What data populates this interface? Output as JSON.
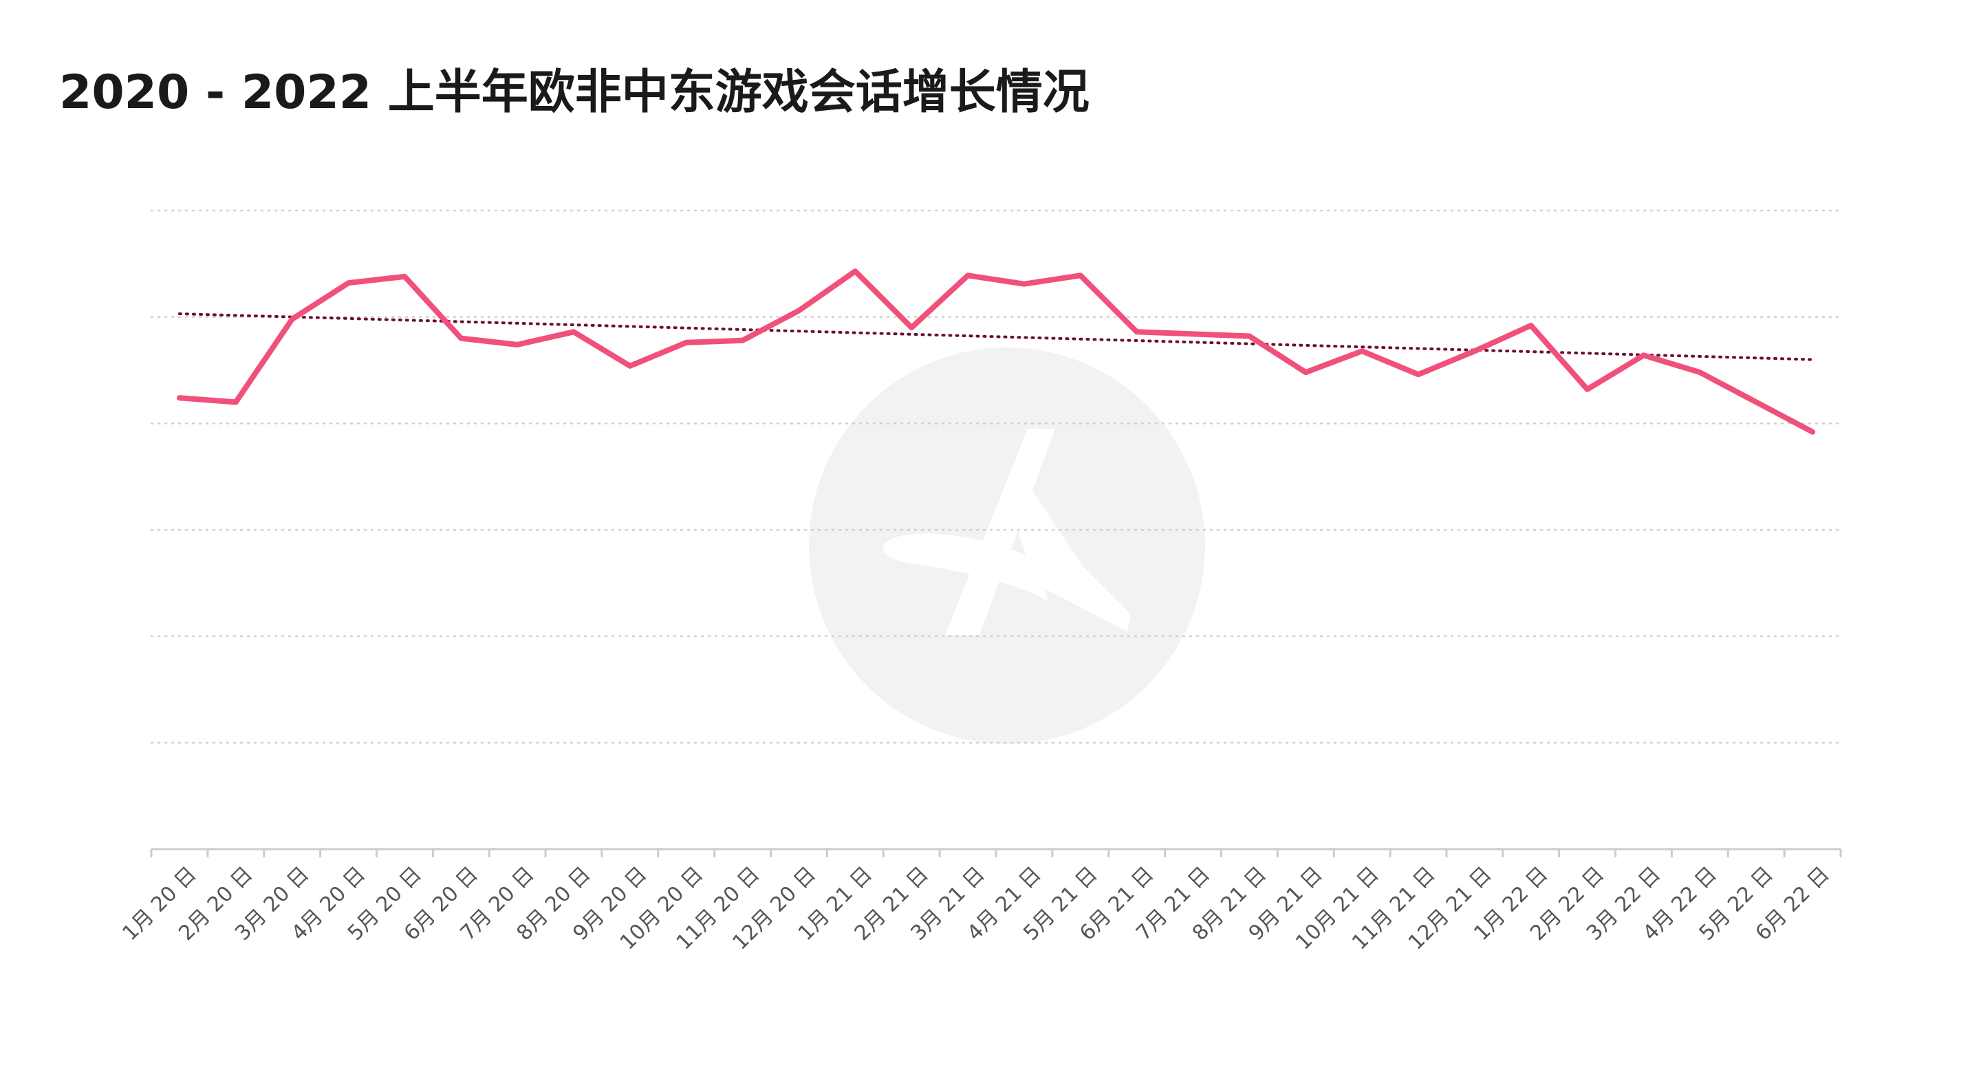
{
  "title": "2020 - 2022 上半年欧非中东游戏会话增长情况",
  "chart_data": {
    "type": "line",
    "title": "2020 - 2022 上半年欧非中东游戏会话增长情况",
    "xlabel": "",
    "ylabel": "",
    "ylim": [
      0,
      6
    ],
    "grid": true,
    "y_tick_labels_shown": false,
    "categories": [
      "1月 20 日",
      "2月 20 日",
      "3月 20 日",
      "4月 20 日",
      "5月 20 日",
      "6月 20 日",
      "7月 20 日",
      "8月 20 日",
      "9月 20 日",
      "10月 20 日",
      "11月 20 日",
      "12月 20 日",
      "1月 21 日",
      "2月 21 日",
      "3月 21 日",
      "4月 21 日",
      "5月 21 日",
      "6月 21 日",
      "7月 21 日",
      "8月 21 日",
      "9月 21 日",
      "10月 21 日",
      "11月 21 日",
      "12月 21 日",
      "1月 22 日",
      "2月 22 日",
      "3月 22 日",
      "4月 22 日",
      "5月 22 日",
      "6月 22 日"
    ],
    "series": [
      {
        "color": "#f0507a",
        "values": [
          4.24,
          4.2,
          4.98,
          5.32,
          5.38,
          4.8,
          4.74,
          4.86,
          4.54,
          4.76,
          4.78,
          5.06,
          5.43,
          4.9,
          5.39,
          5.31,
          5.39,
          4.86,
          4.84,
          4.82,
          4.48,
          4.68,
          4.46,
          4.68,
          4.92,
          4.32,
          4.64,
          4.48,
          4.2,
          3.92
        ]
      }
    ],
    "trendline": {
      "style": "dotted",
      "color": "#6b0f2e",
      "start": 5.03,
      "end": 4.6
    }
  },
  "watermark": {
    "icon": "logo-watermark-icon"
  }
}
